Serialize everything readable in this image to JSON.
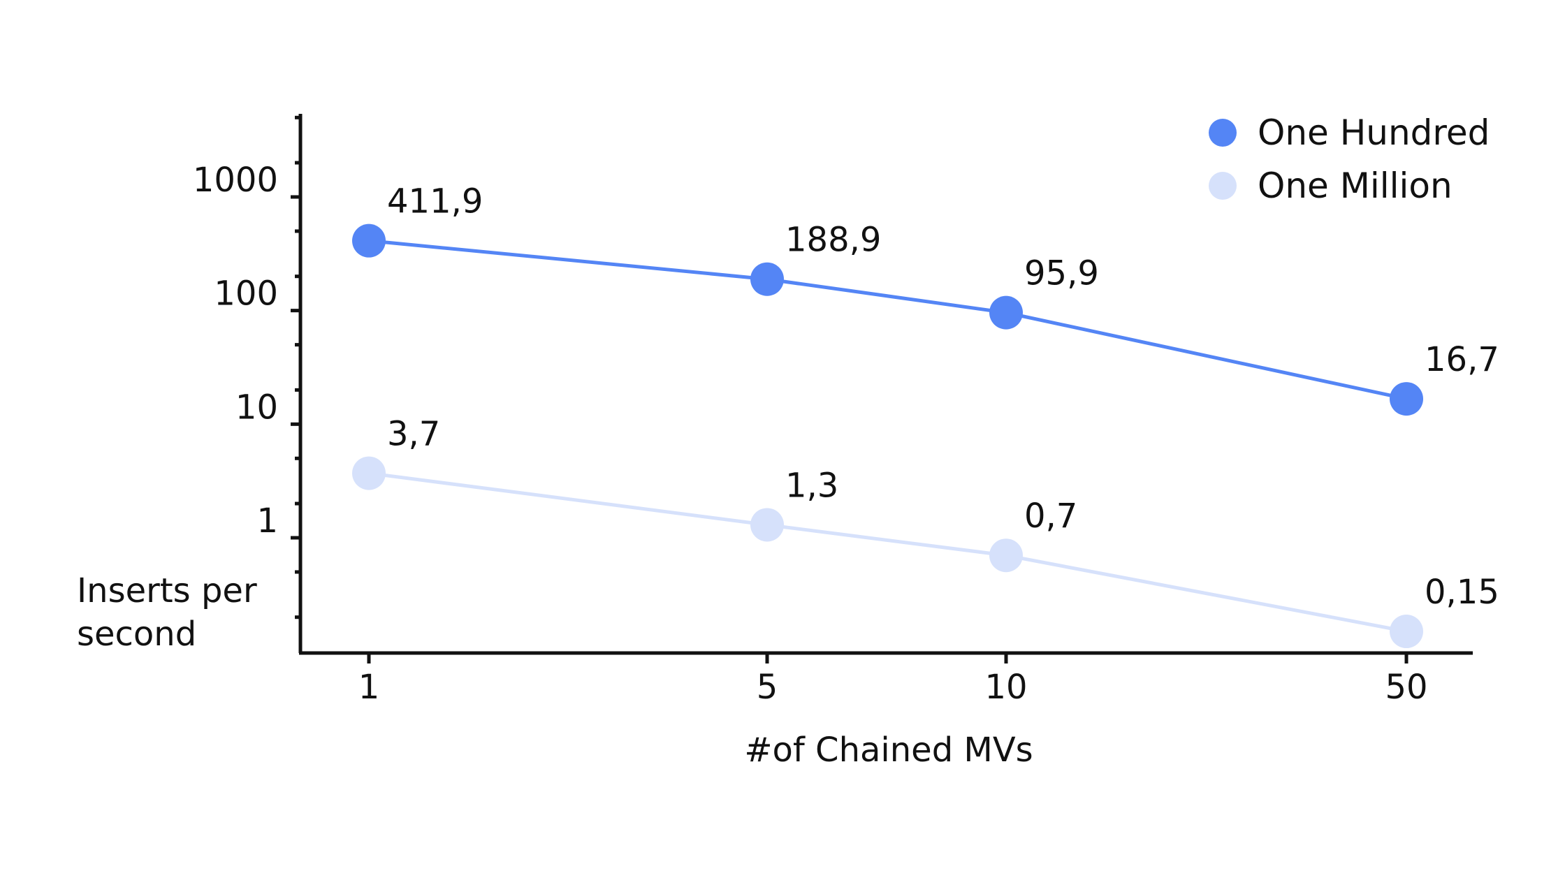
{
  "chart_data": {
    "type": "line",
    "title": "",
    "xlabel": "#of Chained MVs",
    "ylabel": "Inserts per second",
    "ylabel_lines": [
      "Inserts per",
      "second"
    ],
    "x": [
      1,
      5,
      10,
      50
    ],
    "x_tick_labels": [
      "1",
      "5",
      "10",
      "50"
    ],
    "y_scale": "log",
    "y_ticks": [
      1,
      10,
      100,
      1000
    ],
    "y_tick_labels": [
      "1",
      "10",
      "100",
      "1000"
    ],
    "grid": false,
    "legend_position": "top-right",
    "series": [
      {
        "name": "One Hundred",
        "color": "#5485f5",
        "values": [
          411.9,
          188.9,
          95.9,
          16.7
        ],
        "value_labels": [
          "411,9",
          "188,9",
          "95,9",
          "16,7"
        ]
      },
      {
        "name": "One Million",
        "color": "#d6e1fb",
        "values": [
          3.7,
          1.3,
          0.7,
          0.15
        ],
        "value_labels": [
          "3,7",
          "1,3",
          "0,7",
          "0,15"
        ]
      }
    ]
  }
}
